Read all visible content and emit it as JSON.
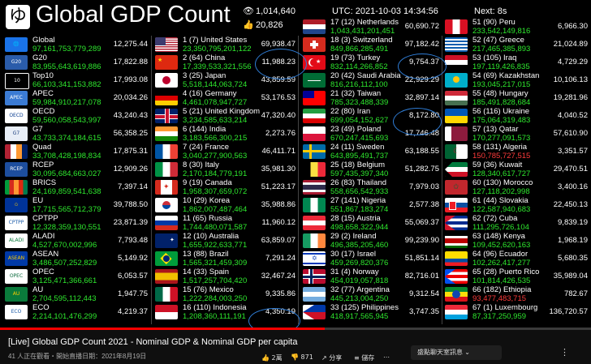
{
  "header": {
    "logo": "ゆ",
    "title": "Global GDP Count",
    "views": "1,014,640",
    "likes": "20,826",
    "utc": "UTC: 2021-10-03 14:34:56",
    "next": "Next: 8s"
  },
  "groups": [
    {
      "name": "Global",
      "value": "97,161,753,779,289",
      "pc": "12,275.44",
      "icon": "globe-icon"
    },
    {
      "name": "G20",
      "value": "83,955,643,619,886",
      "pc": "17,822.88",
      "icon": "g20-logo-icon"
    },
    {
      "name": "Top10",
      "value": "66,103,341,153,882",
      "pc": "17,993.08",
      "icon": "top10-icon"
    },
    {
      "name": "APEC",
      "value": "59,984,910,217,078",
      "pc": "20,034.26",
      "icon": "apec-logo-icon"
    },
    {
      "name": "OECD",
      "value": "59,560,058,543,997",
      "pc": "43,240.43",
      "icon": "oecd-logo-icon"
    },
    {
      "name": "G7",
      "value": "43,733,374,184,615",
      "pc": "56,358.25",
      "icon": "g7-logo-icon"
    },
    {
      "name": "Quad",
      "value": "33,708,428,198,834",
      "pc": "17,875.31",
      "icon": "quad-flags-icon"
    },
    {
      "name": "RCEP",
      "value": "30,095,684,663,027",
      "pc": "12,909.26",
      "icon": "rcep-logo-icon"
    },
    {
      "name": "BRICS",
      "value": "24,169,859,541,638",
      "pc": "7,397.14",
      "icon": "brics-flags-icon"
    },
    {
      "name": "EU",
      "value": "17,715,565,712,379",
      "pc": "39,788.50",
      "icon": "eu-flag-icon"
    },
    {
      "name": "CPTPP",
      "value": "12,328,359,130,551",
      "pc": "23,871.39",
      "icon": "cptpp-logo-icon"
    },
    {
      "name": "ALADI",
      "value": "4,527,670,002,996",
      "pc": "7,793.48",
      "icon": "aladi-logo-icon"
    },
    {
      "name": "ASEAN",
      "value": "3,486,507,252,829",
      "pc": "5,149.92",
      "icon": "asean-logo-icon"
    },
    {
      "name": "OPEC",
      "value": "3,125,471,366,661",
      "pc": "6,053.57",
      "icon": "opec-logo-icon"
    },
    {
      "name": "AU",
      "value": "2,704,595,112,443",
      "pc": "1,947.75",
      "icon": "au-logo-icon"
    },
    {
      "name": "ECO",
      "value": "2,214,101,476,299",
      "pc": "4,219.37",
      "icon": "eco-logo-icon"
    }
  ],
  "countries_1": [
    {
      "name": "1 (7) United States",
      "value": "23,350,795,201,122",
      "pc": "69,938.47",
      "flag": "us"
    },
    {
      "name": "2 (64) China",
      "value": "17,339,533,321,556",
      "pc": "11,988.23",
      "flag": "cn"
    },
    {
      "name": "3 (25) Japan",
      "value": "5,518,144,063,724",
      "pc": "43,859.59",
      "flag": "jp"
    },
    {
      "name": "4 (16) Germany",
      "value": "4,461,078,947,727",
      "pc": "53,176.53",
      "flag": "de"
    },
    {
      "name": "5 (21) United Kingdom",
      "value": "3,234,585,633,214",
      "pc": "47,320.40",
      "flag": "gb"
    },
    {
      "name": "6 (144) India",
      "value": "3,183,566,300,215",
      "pc": "2,273.76",
      "flag": "in"
    },
    {
      "name": "7 (24) France",
      "value": "3,040,277,900,563",
      "pc": "46,411.71",
      "flag": "fr"
    },
    {
      "name": "8 (30) Italy",
      "value": "2,170,184,779,191",
      "pc": "35,981.30",
      "flag": "it"
    },
    {
      "name": "9 (19) Canada",
      "value": "1,958,307,659,072",
      "pc": "51,223.17",
      "flag": "ca"
    },
    {
      "name": "10 (29) Korea",
      "value": "1,862,007,487,464",
      "pc": "35,988.86",
      "flag": "kr"
    },
    {
      "name": "11 (65) Russia",
      "value": "1,744,480,071,587",
      "pc": "11,960.12",
      "flag": "ru"
    },
    {
      "name": "12 (10) Australia",
      "value": "1,655,922,633,771",
      "pc": "63,859.07",
      "flag": "au"
    },
    {
      "name": "13 (88) Brazil",
      "value": "1,565,321,459,309",
      "pc": "7,291.24",
      "flag": "br"
    },
    {
      "name": "14 (33) Spain",
      "value": "1,517,257,704,420",
      "pc": "32,467.24",
      "flag": "es"
    },
    {
      "name": "15 (76) Mexico",
      "value": "1,222,284,003,250",
      "pc": "9,335.86",
      "flag": "mx"
    },
    {
      "name": "16 (110) Indonesia",
      "value": "1,208,360,111,191",
      "pc": "4,350.19",
      "flag": "id"
    }
  ],
  "countries_2": [
    {
      "name": "17 (12) Netherlands",
      "value": "1,043,431,201,451",
      "pc": "60,690.72",
      "flag": "nl"
    },
    {
      "name": "18 (3) Switzerland",
      "value": "849,866,285,491",
      "pc": "97,182.42",
      "flag": "ch"
    },
    {
      "name": "19 (73) Turkey",
      "value": "832,114,266,852",
      "pc": "9,754.37",
      "flag": "tr"
    },
    {
      "name": "20 (42) Saudi Arabia",
      "value": "816,216,112,100",
      "pc": "22,929.29",
      "flag": "sa"
    },
    {
      "name": "21 (32) Taiwan",
      "value": "785,323,488,339",
      "pc": "32,897.14",
      "flag": "tw"
    },
    {
      "name": "22 (80) Iran",
      "value": "699,054,152,627",
      "pc": "8,172.80",
      "flag": "ir"
    },
    {
      "name": "23 (49) Poland",
      "value": "670,247,415,693",
      "pc": "17,746.48",
      "flag": "pl"
    },
    {
      "name": "24 (11) Sweden",
      "value": "643,895,491,737",
      "pc": "63,188.55",
      "flag": "se"
    },
    {
      "name": "25 (18) Belgium",
      "value": "597,435,397,340",
      "pc": "51,282.75",
      "flag": "be"
    },
    {
      "name": "26 (83) Thailand",
      "value": "558,656,542,933",
      "pc": "7,979.03",
      "flag": "th"
    },
    {
      "name": "27 (141) Nigeria",
      "value": "551,867,183,274",
      "pc": "2,577.38",
      "flag": "ng"
    },
    {
      "name": "28 (15) Austria",
      "value": "498,658,322,944",
      "pc": "55,069.37",
      "flag": "at"
    },
    {
      "name": "29 (2) Ireland",
      "value": "496,385,205,460",
      "pc": "99,239.90",
      "flag": "ie"
    },
    {
      "name": "30 (17) Israel",
      "value": "459,269,820,376",
      "pc": "51,851.14",
      "flag": "il"
    },
    {
      "name": "31 (4) Norway",
      "value": "454,019,057,818",
      "pc": "82,716.01",
      "flag": "no"
    },
    {
      "name": "32 (77) Argentina",
      "value": "445,213,004,250",
      "pc": "9,312.54",
      "flag": "ar"
    },
    {
      "name": "33 (125) Philippines",
      "value": "418,917,565,945",
      "pc": "3,747.35",
      "flag": "ph"
    }
  ],
  "countries_3": [
    {
      "name": "51 (90) Peru",
      "value": "233,542,149,816",
      "pc": "6,966.30",
      "flag": "pe"
    },
    {
      "name": "52 (47) Greece",
      "value": "217,465,385,893",
      "pc": "21,024.89",
      "flag": "gr"
    },
    {
      "name": "53 (105) Iraq",
      "value": "197,119,426,835",
      "pc": "4,729.29",
      "flag": "iq"
    },
    {
      "name": "54 (69) Kazakhstan",
      "value": "193,045,217,015",
      "pc": "10,106.13",
      "flag": "kz"
    },
    {
      "name": "55 (48) Hungary",
      "value": "185,491,828,684",
      "pc": "19,281.96",
      "flag": "hu"
    },
    {
      "name": "56 (116) Ukraine",
      "value": "175,064,319,483",
      "pc": "4,040.52",
      "flag": "ua"
    },
    {
      "name": "57 (13) Qatar",
      "value": "170,277,091,573",
      "pc": "57,610.90",
      "flag": "qa"
    },
    {
      "name": "58 (131) Algeria",
      "value": "150,785,727,515",
      "pc": "3,351.57",
      "flag": "dz",
      "red": true
    },
    {
      "name": "59 (36) Kuwait",
      "value": "128,340,617,727",
      "pc": "29,470.51",
      "flag": "kw"
    },
    {
      "name": "60 (130) Morocco",
      "value": "127,118,202,998",
      "pc": "3,400.16",
      "flag": "ma"
    },
    {
      "name": "61 (44) Slovakia",
      "value": "122,587,940,683",
      "pc": "22,450.13",
      "flag": "sk"
    },
    {
      "name": "62 (72) Cuba",
      "value": "111,295,726,104",
      "pc": "9,839.19",
      "flag": "cu"
    },
    {
      "name": "63 (148) Kenya",
      "value": "109,452,620,163",
      "pc": "1,968.19",
      "flag": "ke"
    },
    {
      "name": "64 (96) Ecuador",
      "value": "102,262,417,277",
      "pc": "5,680.35",
      "flag": "ec"
    },
    {
      "name": "65 (28) Puerto Rico",
      "value": "101,814,426,535",
      "pc": "35,989.04",
      "flag": "pr"
    },
    {
      "name": "66 (182) Ethiopia",
      "value": "93,477,483,715",
      "pc": "782.67",
      "flag": "et",
      "red": true
    },
    {
      "name": "67 (1) Luxembourg",
      "value": "87,317,250,959",
      "pc": "136,720.57",
      "flag": "lu"
    }
  ],
  "progress": 0.55,
  "video_info": {
    "title": "[Live] Global GDP Count 2021 - Nominal GDP & Nominal GDP per capita",
    "meta": "41 人正在觀看・開始直播日期：2021年8月19日",
    "like_count": "2萬",
    "dislike_count": "871",
    "share_label": "分享",
    "save_label": "儲存",
    "chat_select": "盛點聊天室訊息"
  }
}
